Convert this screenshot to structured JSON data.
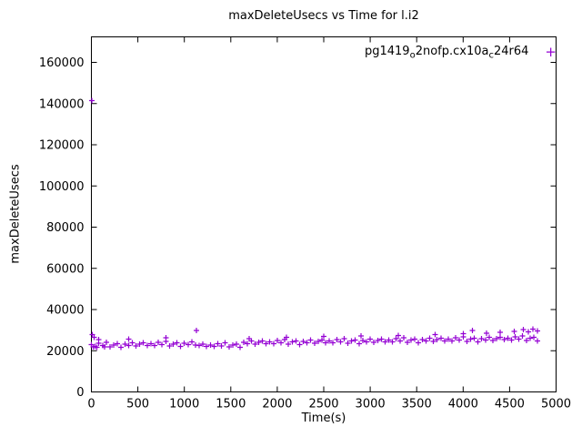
{
  "title": "maxDeleteUsecs vs Time for l.i2",
  "legend": {
    "prefix": "pg1419",
    "sub1": "o",
    "mid": "2nofp.cx10a",
    "sub2": "c",
    "suffix": "24r64",
    "marker_glyph": "+"
  },
  "chart_data": {
    "type": "scatter",
    "title": "maxDeleteUsecs vs Time for l.i2",
    "xlabel": "Time(s)",
    "ylabel": "maxDeleteUsecs",
    "xlim": [
      0,
      5000
    ],
    "ylim": [
      0,
      172400
    ],
    "xticks": [
      0,
      500,
      1000,
      1500,
      2000,
      2500,
      3000,
      3500,
      4000,
      4500,
      5000
    ],
    "yticks": [
      0,
      20000,
      40000,
      60000,
      80000,
      100000,
      120000,
      140000,
      160000
    ],
    "grid": false,
    "legend_position": "top-right",
    "series": [
      {
        "name": "pg1419_o2nofp.cx10a_c24r64",
        "color": "#9400d3",
        "marker": "plus",
        "points": [
          [
            0,
            22900
          ],
          [
            40,
            22128
          ],
          [
            80,
            23556
          ],
          [
            120,
            22484
          ],
          [
            160,
            24012
          ],
          [
            200,
            21940
          ],
          [
            240,
            22868
          ],
          [
            280,
            23396
          ],
          [
            320,
            21724
          ],
          [
            360,
            23252
          ],
          [
            400,
            22580
          ],
          [
            440,
            23908
          ],
          [
            480,
            22336
          ],
          [
            520,
            23164
          ],
          [
            560,
            23792
          ],
          [
            600,
            22620
          ],
          [
            640,
            23348
          ],
          [
            680,
            22576
          ],
          [
            720,
            24004
          ],
          [
            760,
            22932
          ],
          [
            800,
            24460
          ],
          [
            840,
            22388
          ],
          [
            880,
            23316
          ],
          [
            920,
            23844
          ],
          [
            960,
            22172
          ],
          [
            1000,
            23700
          ],
          [
            1040,
            23028
          ],
          [
            1080,
            24356
          ],
          [
            1120,
            22784
          ],
          [
            1160,
            22612
          ],
          [
            1200,
            23240
          ],
          [
            1240,
            22068
          ],
          [
            1280,
            22796
          ],
          [
            1320,
            22024
          ],
          [
            1360,
            23452
          ],
          [
            1400,
            22380
          ],
          [
            1440,
            23908
          ],
          [
            1480,
            21836
          ],
          [
            1520,
            22764
          ],
          [
            1560,
            23292
          ],
          [
            1600,
            21620
          ],
          [
            1640,
            24148
          ],
          [
            1680,
            23476
          ],
          [
            1720,
            24804
          ],
          [
            1760,
            23232
          ],
          [
            1800,
            24060
          ],
          [
            1840,
            24688
          ],
          [
            1880,
            23516
          ],
          [
            1920,
            24244
          ],
          [
            1960,
            23472
          ],
          [
            2000,
            24900
          ],
          [
            2040,
            23828
          ],
          [
            2080,
            25356
          ],
          [
            2120,
            23284
          ],
          [
            2160,
            24212
          ],
          [
            2200,
            24740
          ],
          [
            2240,
            23068
          ],
          [
            2280,
            24596
          ],
          [
            2320,
            23924
          ],
          [
            2360,
            25252
          ],
          [
            2400,
            23680
          ],
          [
            2440,
            24508
          ],
          [
            2480,
            25136
          ],
          [
            2520,
            23964
          ],
          [
            2560,
            24692
          ],
          [
            2600,
            23920
          ],
          [
            2640,
            25348
          ],
          [
            2680,
            24276
          ],
          [
            2720,
            25804
          ],
          [
            2760,
            23732
          ],
          [
            2800,
            24660
          ],
          [
            2840,
            25188
          ],
          [
            2880,
            23516
          ],
          [
            2920,
            25044
          ],
          [
            2960,
            24372
          ],
          [
            3000,
            25700
          ],
          [
            3040,
            24128
          ],
          [
            3080,
            24956
          ],
          [
            3120,
            25584
          ],
          [
            3160,
            24412
          ],
          [
            3200,
            25140
          ],
          [
            3240,
            24368
          ],
          [
            3280,
            25796
          ],
          [
            3320,
            24724
          ],
          [
            3360,
            26252
          ],
          [
            3400,
            24180
          ],
          [
            3440,
            25108
          ],
          [
            3480,
            25636
          ],
          [
            3520,
            23964
          ],
          [
            3560,
            25492
          ],
          [
            3600,
            24820
          ],
          [
            3640,
            26148
          ],
          [
            3680,
            24576
          ],
          [
            3720,
            25404
          ],
          [
            3760,
            26032
          ],
          [
            3800,
            24860
          ],
          [
            3840,
            25588
          ],
          [
            3880,
            24816
          ],
          [
            3920,
            26244
          ],
          [
            3960,
            25172
          ],
          [
            4000,
            26700
          ],
          [
            4040,
            24628
          ],
          [
            4080,
            25556
          ],
          [
            4120,
            26084
          ],
          [
            4160,
            24412
          ],
          [
            4200,
            25940
          ],
          [
            4240,
            25268
          ],
          [
            4280,
            26596
          ],
          [
            4320,
            25024
          ],
          [
            4360,
            25852
          ],
          [
            4400,
            26480
          ],
          [
            4440,
            25308
          ],
          [
            4480,
            26036
          ],
          [
            4520,
            25264
          ],
          [
            4560,
            26692
          ],
          [
            4600,
            25620
          ],
          [
            4640,
            27148
          ],
          [
            4680,
            25076
          ],
          [
            4720,
            26004
          ],
          [
            4760,
            26532
          ],
          [
            4800,
            24860
          ],
          [
            5,
            141500
          ],
          [
            12,
            27800
          ],
          [
            30,
            26500
          ],
          [
            20,
            21800
          ],
          [
            60,
            21600
          ],
          [
            140,
            21900
          ],
          [
            80,
            25400
          ],
          [
            400,
            25600
          ],
          [
            800,
            26200
          ],
          [
            1130,
            29800
          ],
          [
            1700,
            25900
          ],
          [
            2100,
            26600
          ],
          [
            2500,
            27000
          ],
          [
            2900,
            27200
          ],
          [
            3300,
            27500
          ],
          [
            3700,
            27900
          ],
          [
            4000,
            28300
          ],
          [
            4100,
            29900
          ],
          [
            4250,
            28600
          ],
          [
            4400,
            29000
          ],
          [
            4550,
            29400
          ],
          [
            4650,
            30200
          ],
          [
            4700,
            29100
          ],
          [
            4750,
            30400
          ],
          [
            4800,
            29600
          ]
        ]
      }
    ]
  }
}
